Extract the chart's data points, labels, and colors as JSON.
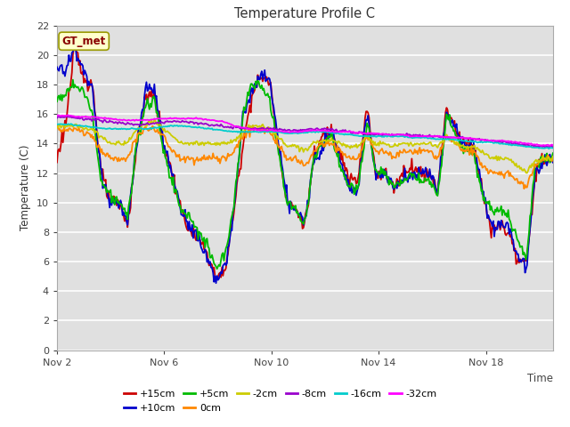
{
  "title": "Temperature Profile C",
  "ylabel": "Temperature (C)",
  "ylim": [
    0,
    22
  ],
  "yticks": [
    0,
    2,
    4,
    6,
    8,
    10,
    12,
    14,
    16,
    18,
    20,
    22
  ],
  "xtick_labels": [
    "Nov 2",
    "Nov 6",
    "Nov 10",
    "Nov 14",
    "Nov 18"
  ],
  "xtick_positions": [
    0,
    4,
    8,
    12,
    16
  ],
  "plot_bg_color": "#e0e0e0",
  "grid_color": "#ffffff",
  "annotation_text": "GT_met",
  "annotation_bg": "#ffffcc",
  "annotation_border": "#999900",
  "legend_entries": [
    "+15cm",
    "+10cm",
    "+5cm",
    "0cm",
    "-2cm",
    "-8cm",
    "-16cm",
    "-32cm"
  ],
  "line_colors": [
    "#cc0000",
    "#0000cc",
    "#00bb00",
    "#ff8800",
    "#cccc00",
    "#9900cc",
    "#00cccc",
    "#ff00ff"
  ],
  "line_widths": [
    1.3,
    1.3,
    1.3,
    1.3,
    1.3,
    1.3,
    1.3,
    1.3
  ],
  "num_points": 500
}
